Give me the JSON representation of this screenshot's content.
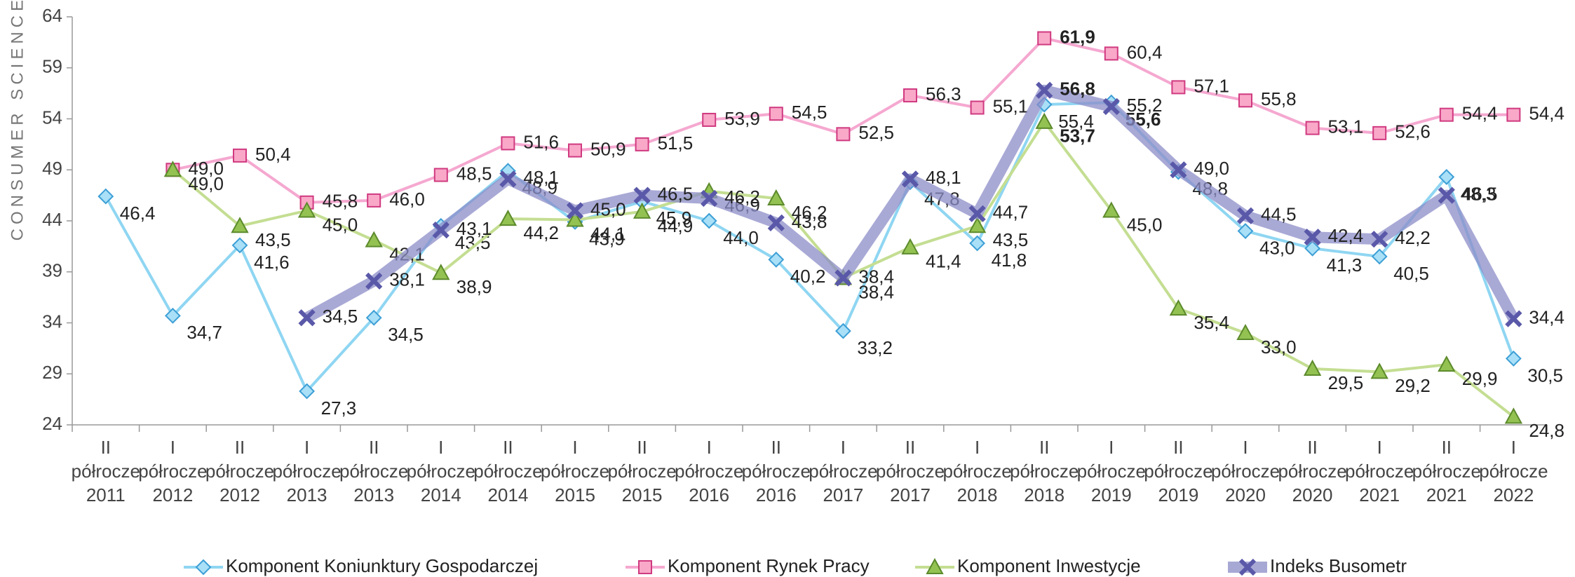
{
  "chart_data": {
    "type": "line",
    "ylabel": "CONSUMER SCIENCE",
    "categories": [
      [
        "II",
        "półrocze",
        "2011"
      ],
      [
        "I",
        "półrocze",
        "2012"
      ],
      [
        "II",
        "półrocze",
        "2012"
      ],
      [
        "I",
        "półrocze",
        "2013"
      ],
      [
        "II",
        "półrocze",
        "2013"
      ],
      [
        "I",
        "półrocze",
        "2014"
      ],
      [
        "II",
        "półrocze",
        "2014"
      ],
      [
        "I",
        "półrocze",
        "2015"
      ],
      [
        "II",
        "półrocze",
        "2015"
      ],
      [
        "I",
        "półrocze",
        "2016"
      ],
      [
        "II",
        "półrocze",
        "2016"
      ],
      [
        "I",
        "półrocze",
        "2017"
      ],
      [
        "II",
        "półrocze",
        "2017"
      ],
      [
        "I",
        "półrocze",
        "2018"
      ],
      [
        "II",
        "półrocze",
        "2018"
      ],
      [
        "I",
        "półrocze",
        "2019"
      ],
      [
        "II",
        "półrocze",
        "2019"
      ],
      [
        "I",
        "półrocze",
        "2020"
      ],
      [
        "II",
        "półrocze",
        "2020"
      ],
      [
        "I",
        "półrocze",
        "2021"
      ],
      [
        "II",
        "półrocze",
        "2021"
      ],
      [
        "I",
        "półrocze",
        "2022"
      ]
    ],
    "ylim": [
      24,
      64
    ],
    "yticks": [
      24,
      29,
      34,
      39,
      44,
      49,
      54,
      59,
      64
    ],
    "series": [
      {
        "name": "Komponent Koniunktury Gospodarczej",
        "color": "#8fd6f2",
        "marker": "diamond",
        "values": [
          46.4,
          34.7,
          41.6,
          27.3,
          34.5,
          43.5,
          48.9,
          43.9,
          45.9,
          44.0,
          40.2,
          33.2,
          47.8,
          41.8,
          55.4,
          55.6,
          48.8,
          43.0,
          41.3,
          40.5,
          48.3,
          30.5
        ],
        "value_labels": [
          "46,4",
          "34,7",
          "41,6",
          "27,3",
          "34,5",
          "43,5",
          "48,9",
          "43,9",
          "45,9",
          "44,0",
          "40,2",
          "33,2",
          "47,8",
          "41,8",
          "55,4",
          "55,6",
          "48,8",
          "43,0",
          "41,3",
          "40,5",
          "48,3",
          "30,5"
        ]
      },
      {
        "name": "Komponent Rynek Pracy",
        "color": "#f5a8d0",
        "marker": "square",
        "values": [
          null,
          49.0,
          50.4,
          45.8,
          46.0,
          48.5,
          51.6,
          50.9,
          51.5,
          53.9,
          54.5,
          52.5,
          56.3,
          55.1,
          61.9,
          60.4,
          57.1,
          55.8,
          53.1,
          52.6,
          54.4,
          54.4
        ],
        "value_labels": [
          null,
          "49,0",
          "50,4",
          "45,8",
          "46,0",
          "48,5",
          "51,6",
          "50,9",
          "51,5",
          "53,9",
          "54,5",
          "52,5",
          "56,3",
          "55,1",
          "61,9",
          "60,4",
          "57,1",
          "55,8",
          "53,1",
          "52,6",
          "54,4",
          "54,4"
        ]
      },
      {
        "name": "Komponent Inwestycje",
        "color": "#c4de92",
        "marker": "triangle",
        "values": [
          null,
          49.0,
          43.5,
          45.0,
          42.1,
          38.9,
          44.2,
          44.1,
          44.9,
          46.9,
          46.2,
          38.4,
          41.4,
          43.5,
          53.7,
          45.0,
          35.4,
          33.0,
          29.5,
          29.2,
          29.9,
          24.8
        ],
        "value_labels": [
          null,
          "49,0",
          "43,5",
          "45,0",
          "42,1",
          "38,9",
          "44,2",
          "44,1",
          "44,9",
          "46,9",
          "46,2",
          "38,4",
          "41,4",
          "43,5",
          "53,7",
          "45,0",
          "35,4",
          "33,0",
          "29,5",
          "29,2",
          "29,9",
          "24,8"
        ]
      },
      {
        "name": "Indeks Busometr",
        "color": "#8c8cc8",
        "marker": "x",
        "values": [
          null,
          null,
          null,
          34.5,
          38.1,
          43.1,
          48.1,
          45.0,
          46.5,
          46.2,
          43.8,
          38.4,
          48.1,
          44.7,
          56.8,
          55.2,
          49.0,
          44.5,
          42.4,
          42.2,
          46.5,
          34.4
        ],
        "value_labels": [
          null,
          null,
          null,
          "34,5",
          "38,1",
          "43,1",
          "48,1",
          "45,0",
          "46,5",
          "46,2",
          "43,8",
          "38,4",
          "48,1",
          "44,7",
          "56,8",
          "55,2",
          "49,0",
          "44,5",
          "42,4",
          "42,2",
          "46,5",
          "34,4"
        ]
      }
    ]
  }
}
